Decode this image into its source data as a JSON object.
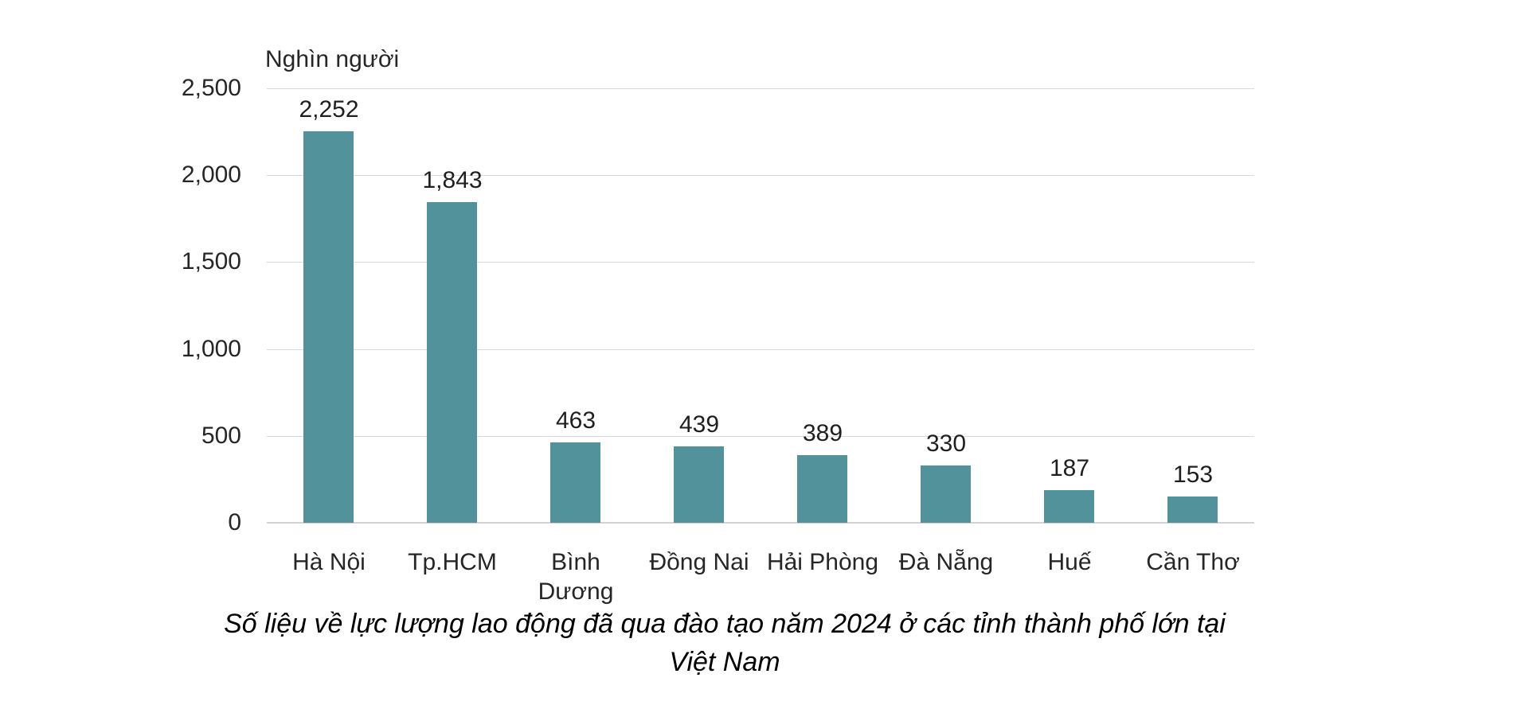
{
  "chart": {
    "unit_label": "Nghìn người",
    "caption_line1": "Số liệu về lực lượng lao động đã qua đào tạo năm 2024 ở các tỉnh thành phố lớn tại",
    "caption_line2": "Việt Nam"
  },
  "chart_data": {
    "type": "bar",
    "title": "Số liệu về lực lượng lao động đã qua đào tạo năm 2024 ở các tỉnh thành phố lớn tại Việt Nam",
    "unit_label": "Nghìn người",
    "categories": [
      "Hà Nội",
      "Tp.HCM",
      "Bình Dương",
      "Đồng Nai",
      "Hải Phòng",
      "Đà Nẵng",
      "Huế",
      "Cần Thơ"
    ],
    "category_display": [
      "Hà Nội",
      "Tp.HCM",
      "Bình\nDương",
      "Đồng Nai",
      "Hải Phòng",
      "Đà Nẵng",
      "Huế",
      "Cần Thơ"
    ],
    "values": [
      2252,
      1843,
      463,
      439,
      389,
      330,
      187,
      153
    ],
    "value_labels": [
      "2,252",
      "1,843",
      "463",
      "439",
      "389",
      "330",
      "187",
      "153"
    ],
    "xlabel": "",
    "ylabel": "Nghìn người",
    "ylim": [
      0,
      2500
    ],
    "ytick_values": [
      0,
      500,
      1000,
      1500,
      2000,
      2500
    ],
    "ytick_labels": [
      "0",
      "500",
      "1,000",
      "1,500",
      "2,000",
      "2,500"
    ],
    "grid": "horizontal",
    "legend": "none",
    "bar_color": "#52939b",
    "gridline_color": "#d9d9d9",
    "axisline_color": "#d2d2d2",
    "text_color": "#262626"
  }
}
